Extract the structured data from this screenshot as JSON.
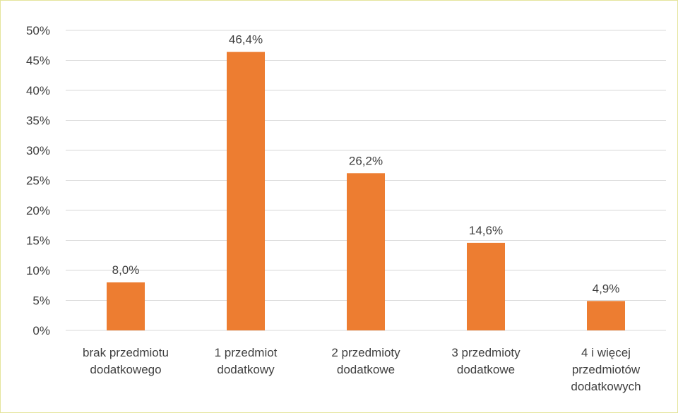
{
  "chart_data": {
    "type": "bar",
    "categories": [
      [
        "brak przedmiotu",
        "dodatkowego"
      ],
      [
        "1 przedmiot",
        "dodatkowy"
      ],
      [
        "2 przedmioty",
        "dodatkowe"
      ],
      [
        "3 przedmioty",
        "dodatkowe"
      ],
      [
        "4 i więcej",
        "przedmiotów",
        "dodatkowych"
      ]
    ],
    "values": [
      8.0,
      46.4,
      26.2,
      14.6,
      4.9
    ],
    "data_labels": [
      "8,0%",
      "46,4%",
      "26,2%",
      "14,6%",
      "4,9%"
    ],
    "ylim": [
      0,
      50
    ],
    "yticks": [
      0,
      5,
      10,
      15,
      20,
      25,
      30,
      35,
      40,
      45,
      50
    ],
    "ytick_labels": [
      "0%",
      "5%",
      "10%",
      "15%",
      "20%",
      "25%",
      "30%",
      "35%",
      "40%",
      "45%",
      "50%"
    ],
    "grid": true,
    "colors": {
      "bar": "#ED7D31",
      "grid": "#d9d9d9",
      "text": "#404040",
      "frame": "#e4e49c"
    }
  }
}
